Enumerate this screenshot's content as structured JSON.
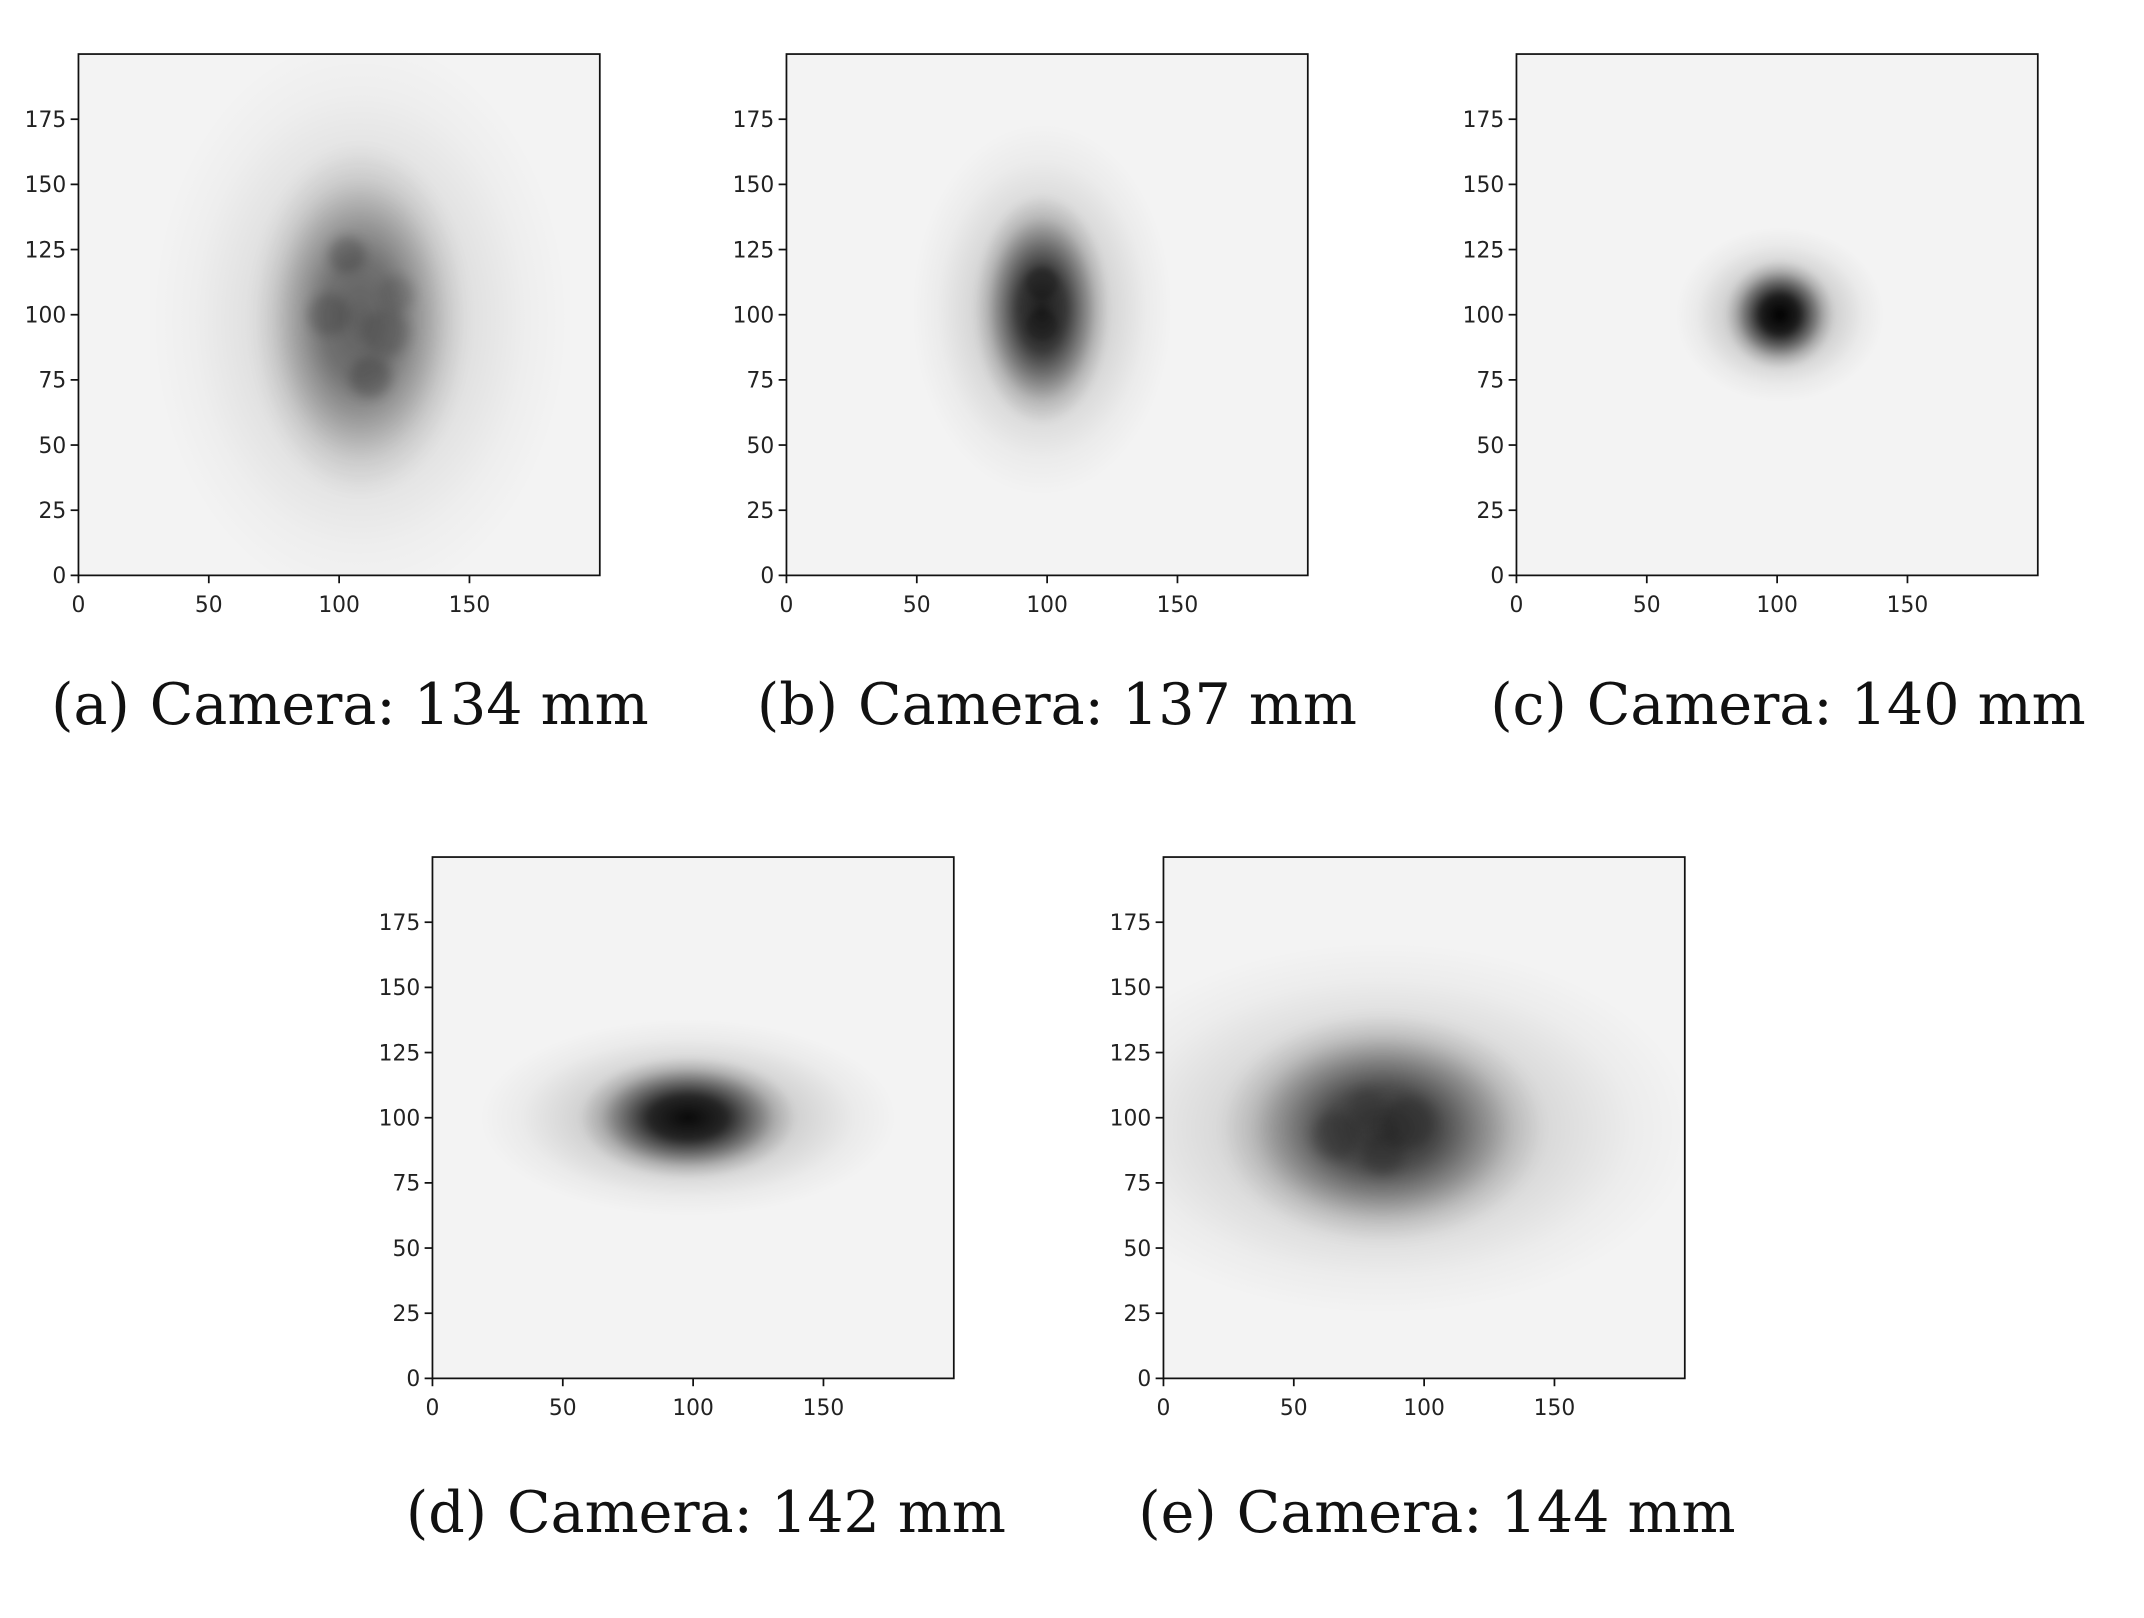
{
  "chart_data": [
    {
      "type": "heatmap",
      "colormap": "gray_r",
      "label": "(a)",
      "caption": "Camera: 134 mm",
      "xlim": [
        0,
        200
      ],
      "ylim": [
        0,
        200
      ],
      "xticks": [
        0,
        50,
        100,
        150
      ],
      "yticks": [
        0,
        25,
        50,
        75,
        100,
        125,
        150,
        175
      ],
      "spot": {
        "shape": "diffuse blotchy oval",
        "center": [
          108,
          98
        ],
        "sigma_x": 16,
        "sigma_y": 26,
        "peak": 0.55
      }
    },
    {
      "type": "heatmap",
      "colormap": "gray_r",
      "label": "(b)",
      "caption": "Camera: 137 mm",
      "xlim": [
        0,
        200
      ],
      "ylim": [
        0,
        200
      ],
      "xticks": [
        0,
        50,
        100,
        150
      ],
      "yticks": [
        0,
        25,
        50,
        75,
        100,
        125,
        150,
        175
      ],
      "spot": {
        "shape": "vertical ellipse",
        "center": [
          98,
          102
        ],
        "sigma_x": 10,
        "sigma_y": 17,
        "peak": 0.85
      }
    },
    {
      "type": "heatmap",
      "colormap": "gray_r",
      "label": "(c)",
      "caption": "Camera: 140 mm",
      "xlim": [
        0,
        200
      ],
      "ylim": [
        0,
        200
      ],
      "xticks": [
        0,
        50,
        100,
        150
      ],
      "yticks": [
        0,
        25,
        50,
        75,
        100,
        125,
        150,
        175
      ],
      "spot": {
        "shape": "compact round spot",
        "center": [
          101,
          100
        ],
        "sigma_x": 8,
        "sigma_y": 8,
        "peak": 1.0
      }
    },
    {
      "type": "heatmap",
      "colormap": "gray_r",
      "label": "(d)",
      "caption": "Camera: 142 mm",
      "xlim": [
        0,
        200
      ],
      "ylim": [
        0,
        200
      ],
      "xticks": [
        0,
        50,
        100,
        150
      ],
      "yticks": [
        0,
        25,
        50,
        75,
        100,
        125,
        150,
        175
      ],
      "spot": {
        "shape": "horizontal ellipse",
        "center": [
          98,
          100
        ],
        "sigma_x": 16,
        "sigma_y": 9,
        "peak": 0.95
      }
    },
    {
      "type": "heatmap",
      "colormap": "gray_r",
      "label": "(e)",
      "caption": "Camera: 144 mm",
      "xlim": [
        0,
        200
      ],
      "ylim": [
        0,
        200
      ],
      "xticks": [
        0,
        50,
        100,
        150
      ],
      "yticks": [
        0,
        25,
        50,
        75,
        100,
        125,
        150,
        175
      ],
      "spot": {
        "shape": "diffuse horizontal oval",
        "center": [
          84,
          96
        ],
        "sigma_x": 24,
        "sigma_y": 17,
        "peak": 0.75
      }
    }
  ]
}
